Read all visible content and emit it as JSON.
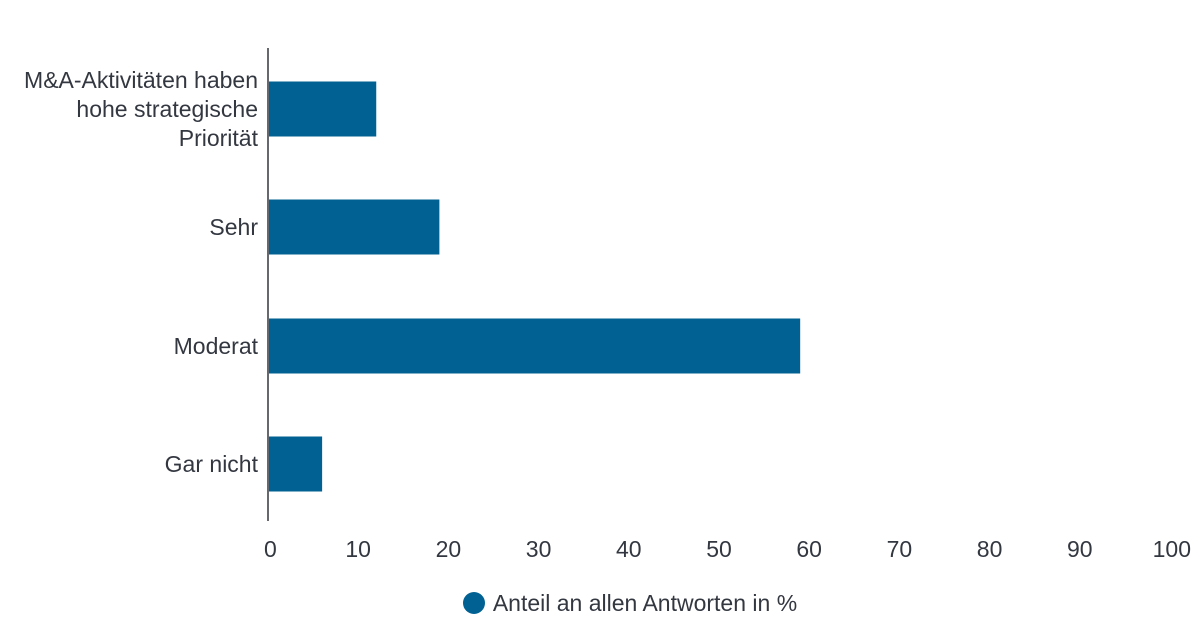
{
  "chart_data": {
    "type": "bar",
    "orientation": "horizontal",
    "categories": [
      "M&A-Aktivitäten haben hohe strategische Priorität",
      "Sehr",
      "Moderat",
      "Gar nicht"
    ],
    "category_lines": [
      [
        "M&A-Aktivitäten haben",
        "hohe strategische",
        "Priorität"
      ],
      [
        "Sehr"
      ],
      [
        "Moderat"
      ],
      [
        "Gar nicht"
      ]
    ],
    "series": [
      {
        "name": "Anteil an allen Antworten in %",
        "values": [
          12,
          19,
          59,
          6
        ],
        "color": "#006192"
      }
    ],
    "xlim": [
      0,
      100
    ],
    "xticks": [
      0,
      10,
      20,
      30,
      40,
      50,
      60,
      70,
      80,
      90,
      100
    ],
    "xlabel": "",
    "ylabel": "",
    "grid": false,
    "legend_position": "bottom"
  }
}
